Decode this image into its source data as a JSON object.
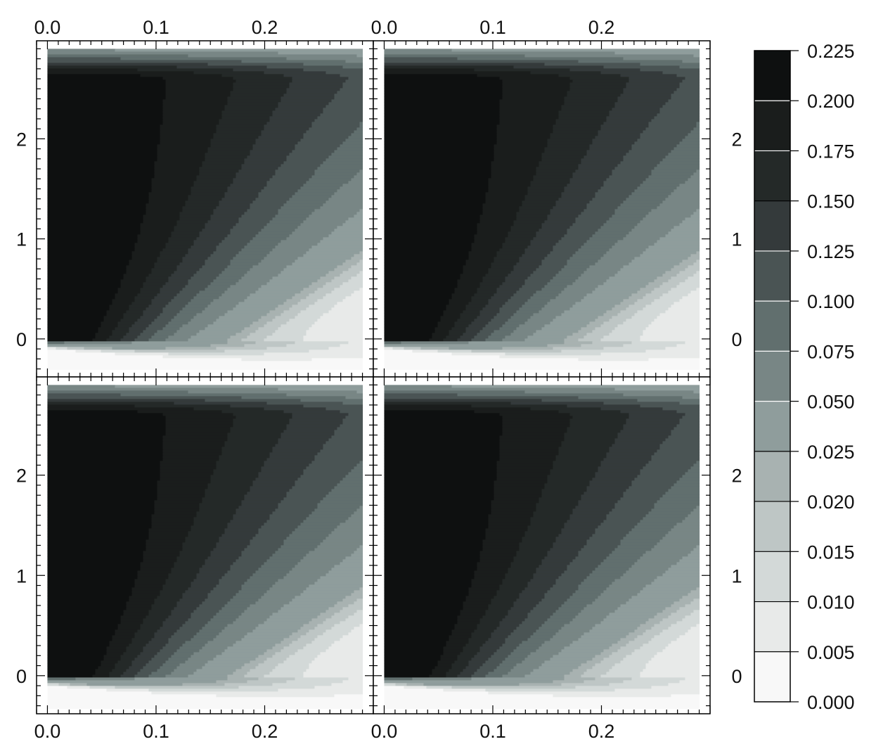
{
  "chart_data": {
    "type": "contour",
    "layout": "2x2 panels sharing axes",
    "x_ticks": [
      "0.0",
      "0.1",
      "0.2"
    ],
    "y_ticks": [
      "0",
      "1",
      "2"
    ],
    "xlim": [
      -0.01,
      0.3
    ],
    "ylim": [
      -0.38,
      2.98
    ],
    "x_ticks_top": true,
    "x_ticks_bottom": true,
    "y_ticks_left": true,
    "y_ticks_right": true,
    "grid": false,
    "colorbar": {
      "placement": "right",
      "levels": [
        "0.000",
        "0.005",
        "0.010",
        "0.015",
        "0.020",
        "0.025",
        "0.050",
        "0.075",
        "0.100",
        "0.125",
        "0.150",
        "0.175",
        "0.200",
        "0.225"
      ],
      "colors": [
        "#f8f8f8",
        "#e8eae9",
        "#d3d9d8",
        "#bec6c5",
        "#a8b2b1",
        "#8f9d9c",
        "#788685",
        "#616f6e",
        "#4a5454",
        "#343a3b",
        "#242928",
        "#1a1d1c",
        "#0e1010"
      ],
      "line_colors": [
        "#000000",
        "#000000",
        "#000000",
        "#000000",
        "#000000",
        "#ffffff",
        "#ffffff",
        "#ffffff",
        "#ffffff",
        "#000000",
        "#ffffff",
        "#ffffff"
      ]
    },
    "panels": [
      {
        "position": "top-left",
        "peak_value": 0.225,
        "peak_x": 0.0,
        "peak_y": 0.1,
        "outer_edge_y_at_x0": 2.9
      },
      {
        "position": "top-right",
        "peak_value": 0.225,
        "peak_x": 0.0,
        "peak_y": 0.1,
        "outer_edge_y_at_x0": 2.9
      },
      {
        "position": "bottom-left",
        "peak_value": 0.225,
        "peak_x": 0.0,
        "peak_y": 0.1,
        "outer_edge_y_at_x0": 2.9
      },
      {
        "position": "bottom-right",
        "peak_value": 0.225,
        "peak_x": 0.0,
        "peak_y": 0.1,
        "outer_edge_y_at_x0": 2.9
      }
    ]
  }
}
